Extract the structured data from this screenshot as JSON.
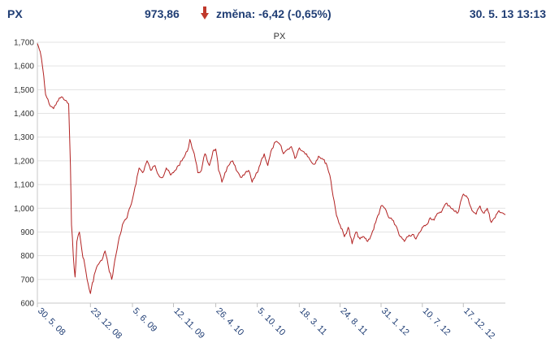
{
  "header": {
    "name": "PX",
    "value": "973,86",
    "change": "změna: -6,42 (-0,65%)",
    "datetime": "30. 5. 13 13:13",
    "direction_icon": "arrow-down-icon",
    "down_color": "#c0392b"
  },
  "chart_data": {
    "type": "line",
    "title": "PX",
    "xlabel": "",
    "ylabel": "",
    "ylim": [
      600,
      1700
    ],
    "xlim": [
      "2008-05-30",
      "2013-05-30"
    ],
    "grid": true,
    "line_color": "#b22222",
    "y_ticks": [
      "600",
      "700",
      "800",
      "900",
      "1,000",
      "1,100",
      "1,200",
      "1,300",
      "1,400",
      "1,500",
      "1,600",
      "1,700"
    ],
    "x_ticks": [
      {
        "date": "2008-05-30",
        "label": "30. 5. 08"
      },
      {
        "date": "2008-12-23",
        "label": "23. 12. 08"
      },
      {
        "date": "2009-06-05",
        "label": "5. 6. 09"
      },
      {
        "date": "2009-11-12",
        "label": "12. 11. 09"
      },
      {
        "date": "2010-04-26",
        "label": "26. 4. 10"
      },
      {
        "date": "2010-10-05",
        "label": "5. 10. 10"
      },
      {
        "date": "2011-03-18",
        "label": "18. 3. 11"
      },
      {
        "date": "2011-08-24",
        "label": "24. 8. 11"
      },
      {
        "date": "2012-01-31",
        "label": "31. 1. 12"
      },
      {
        "date": "2012-07-10",
        "label": "10. 7. 12"
      },
      {
        "date": "2012-12-17",
        "label": "17. 12. 12"
      }
    ],
    "series": [
      {
        "x": [
          "2008-05-30",
          "2008-06-10",
          "2008-06-20",
          "2008-07-01",
          "2008-07-15",
          "2008-08-01",
          "2008-08-15",
          "2008-09-01",
          "2008-09-15",
          "2008-09-29",
          "2008-10-06",
          "2008-10-10",
          "2008-10-17",
          "2008-10-24",
          "2008-10-31",
          "2008-11-10",
          "2008-11-20",
          "2008-12-01",
          "2008-12-10",
          "2008-12-23",
          "2009-01-07",
          "2009-01-20",
          "2009-02-05",
          "2009-02-18",
          "2009-03-02",
          "2009-03-16",
          "2009-04-01",
          "2009-04-15",
          "2009-05-01",
          "2009-05-15",
          "2009-06-01",
          "2009-06-15",
          "2009-07-01",
          "2009-07-15",
          "2009-08-01",
          "2009-08-15",
          "2009-09-01",
          "2009-09-15",
          "2009-10-01",
          "2009-10-15",
          "2009-11-01",
          "2009-11-12",
          "2009-12-01",
          "2009-12-15",
          "2010-01-05",
          "2010-01-15",
          "2010-02-01",
          "2010-02-15",
          "2010-03-01",
          "2010-03-15",
          "2010-04-01",
          "2010-04-15",
          "2010-04-26",
          "2010-05-07",
          "2010-05-20",
          "2010-06-01",
          "2010-06-15",
          "2010-07-01",
          "2010-07-15",
          "2010-08-01",
          "2010-08-15",
          "2010-09-01",
          "2010-09-15",
          "2010-10-05",
          "2010-10-20",
          "2010-11-01",
          "2010-11-15",
          "2010-12-01",
          "2010-12-15",
          "2011-01-01",
          "2011-01-15",
          "2011-02-01",
          "2011-02-15",
          "2011-03-01",
          "2011-03-18",
          "2011-04-01",
          "2011-04-15",
          "2011-05-01",
          "2011-05-15",
          "2011-06-01",
          "2011-06-15",
          "2011-07-01",
          "2011-07-15",
          "2011-08-01",
          "2011-08-10",
          "2011-08-24",
          "2011-09-10",
          "2011-09-25",
          "2011-10-10",
          "2011-10-25",
          "2011-11-10",
          "2011-11-25",
          "2011-12-10",
          "2011-12-25",
          "2012-01-10",
          "2012-01-31",
          "2012-02-15",
          "2012-03-01",
          "2012-03-15",
          "2012-04-01",
          "2012-04-15",
          "2012-05-01",
          "2012-05-15",
          "2012-06-01",
          "2012-06-15",
          "2012-07-01",
          "2012-07-10",
          "2012-07-25",
          "2012-08-10",
          "2012-08-25",
          "2012-09-10",
          "2012-09-25",
          "2012-10-10",
          "2012-10-25",
          "2012-11-10",
          "2012-11-25",
          "2012-12-10",
          "2012-12-17",
          "2013-01-05",
          "2013-01-20",
          "2013-02-05",
          "2013-02-20",
          "2013-03-05",
          "2013-03-20",
          "2013-04-05",
          "2013-04-20",
          "2013-05-05",
          "2013-05-20",
          "2013-05-30"
        ],
        "values": [
          1695,
          1660,
          1590,
          1480,
          1440,
          1420,
          1450,
          1470,
          1455,
          1440,
          1180,
          930,
          800,
          710,
          860,
          900,
          820,
          760,
          700,
          640,
          720,
          760,
          780,
          820,
          760,
          700,
          800,
          880,
          940,
          960,
          1020,
          1090,
          1170,
          1150,
          1200,
          1160,
          1180,
          1140,
          1130,
          1170,
          1140,
          1150,
          1180,
          1200,
          1240,
          1290,
          1230,
          1150,
          1160,
          1230,
          1180,
          1240,
          1250,
          1160,
          1110,
          1150,
          1180,
          1200,
          1160,
          1130,
          1140,
          1160,
          1110,
          1150,
          1200,
          1230,
          1180,
          1250,
          1280,
          1270,
          1230,
          1250,
          1260,
          1210,
          1255,
          1240,
          1230,
          1200,
          1185,
          1220,
          1210,
          1190,
          1140,
          1030,
          970,
          930,
          880,
          920,
          850,
          900,
          870,
          880,
          860,
          890,
          940,
          1010,
          1000,
          960,
          950,
          920,
          880,
          860,
          880,
          890,
          870,
          900,
          920,
          930,
          960,
          950,
          980,
          990,
          1020,
          1010,
          990,
          980,
          1040,
          1060,
          1040,
          990,
          975,
          1010,
          980,
          1000,
          940,
          960,
          990,
          980,
          973
        ]
      }
    ]
  }
}
